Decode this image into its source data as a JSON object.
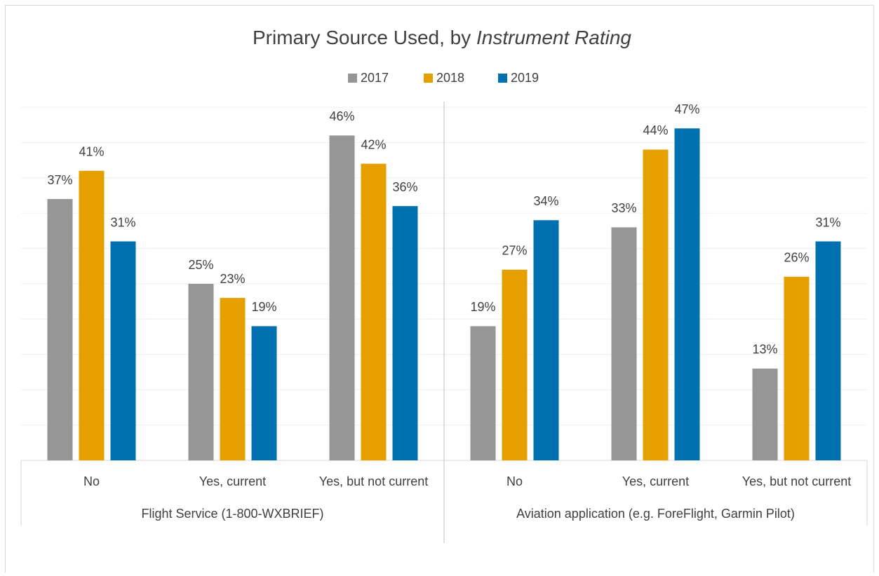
{
  "chart_data": {
    "type": "bar",
    "title": "Primary Source Used, by",
    "title_italic": "Instrument Rating",
    "groups": [
      "Flight Service (1-800-WXBRIEF)",
      "Aviation application (e.g. ForeFlight, Garmin Pilot)"
    ],
    "categories": [
      "No",
      "Yes, current",
      "Yes, but not current",
      "No",
      "Yes, current",
      "Yes, but not current"
    ],
    "series": [
      {
        "name": "2017",
        "color": "#969696",
        "values": [
          37,
          25,
          46,
          19,
          33,
          13
        ],
        "value_labels": [
          "37%",
          "25%",
          "46%",
          "19%",
          "33%",
          "13%"
        ]
      },
      {
        "name": "2018",
        "color": "#e5a000",
        "values": [
          41,
          23,
          42,
          27,
          44,
          26
        ],
        "value_labels": [
          "41%",
          "23%",
          "42%",
          "27%",
          "44%",
          "26%"
        ]
      },
      {
        "name": "2019",
        "color": "#0070b0",
        "values": [
          31,
          19,
          36,
          34,
          47,
          31
        ],
        "value_labels": [
          "31%",
          "19%",
          "36%",
          "34%",
          "47%",
          "31%"
        ]
      }
    ],
    "ylim": [
      0,
      50
    ],
    "yticks": [
      0,
      5,
      10,
      15,
      20,
      25,
      30,
      35,
      40,
      45,
      50
    ],
    "grid": true,
    "legend": "top"
  }
}
